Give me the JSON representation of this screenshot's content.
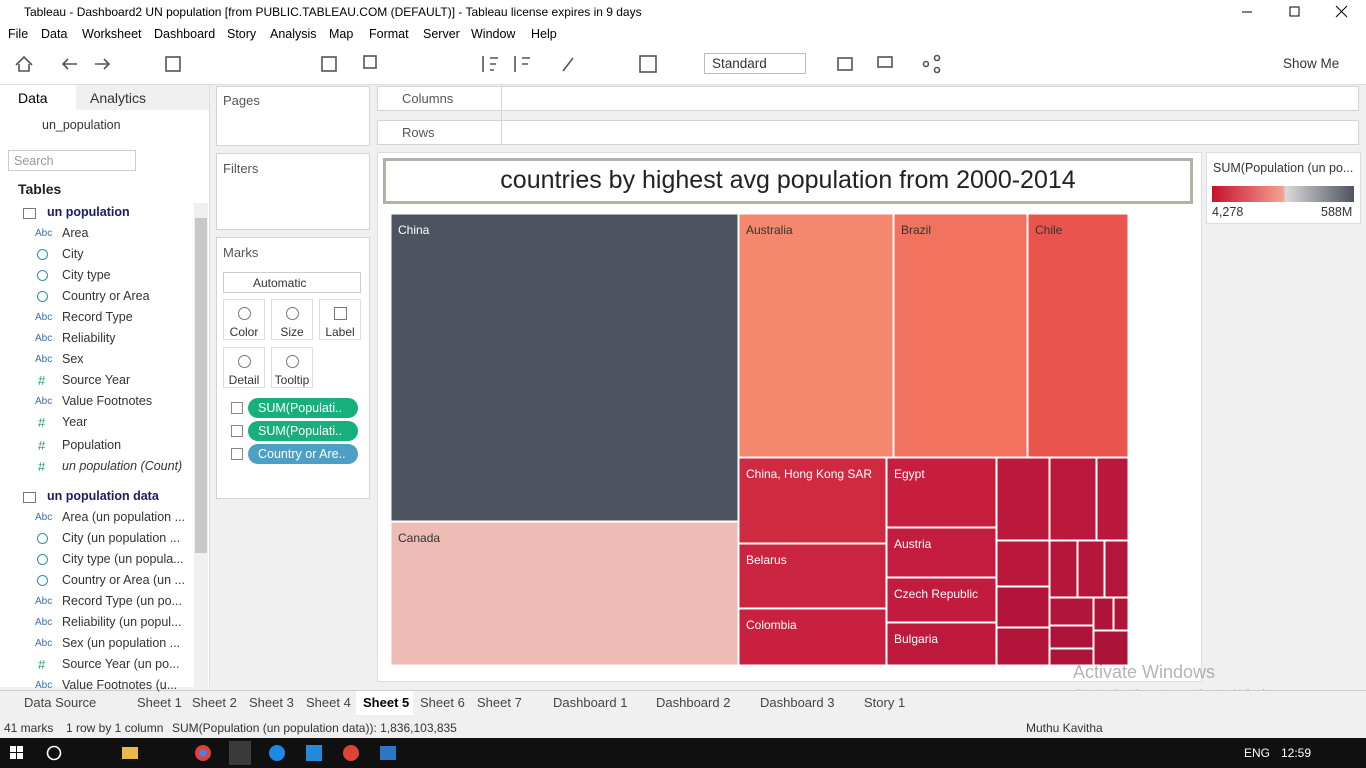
{
  "window": {
    "title": "Tableau - Dashboard2 UN population [from PUBLIC.TABLEAU.COM (DEFAULT)] - Tableau license expires in 9 days"
  },
  "menu": [
    "File",
    "Data",
    "Worksheet",
    "Dashboard",
    "Story",
    "Analysis",
    "Map",
    "Format",
    "Server",
    "Window",
    "Help"
  ],
  "toolbar": {
    "mode": "Standard",
    "show_me": "Show Me"
  },
  "data_pane": {
    "tabs": [
      "Data",
      "Analytics"
    ],
    "datasource": "un_population",
    "search": "Search",
    "tables_heading": "Tables",
    "tables": [
      {
        "name": "un population",
        "fields": [
          {
            "icon": "Abc",
            "name": "Area"
          },
          {
            "name": "City"
          },
          {
            "name": "City type"
          },
          {
            "name": "Country or Area"
          },
          {
            "icon": "Abc",
            "name": "Record Type"
          },
          {
            "icon": "Abc",
            "name": "Reliability"
          },
          {
            "icon": "Abc",
            "name": "Sex"
          },
          {
            "icon": "#",
            "name": "Source Year"
          },
          {
            "icon": "Abc",
            "name": "Value Footnotes"
          },
          {
            "icon": "#",
            "name": "Year"
          },
          {
            "icon": "#",
            "name": "Population"
          },
          {
            "icon": "#",
            "name": "un population (Count)"
          }
        ]
      },
      {
        "name": "un population data",
        "fields": [
          {
            "icon": "Abc",
            "name": "Area (un population ..."
          },
          {
            "name": "City (un population ..."
          },
          {
            "name": "City type (un popula..."
          },
          {
            "name": "Country or Area (un ..."
          },
          {
            "icon": "Abc",
            "name": "Record Type (un po..."
          },
          {
            "icon": "Abc",
            "name": "Reliability (un popul..."
          },
          {
            "icon": "Abc",
            "name": "Sex (un population ..."
          },
          {
            "icon": "#",
            "name": "Source Year (un po..."
          },
          {
            "icon": "Abc",
            "name": "Value Footnotes (u..."
          }
        ]
      }
    ]
  },
  "shelves": {
    "pages": "Pages",
    "columns": "Columns",
    "rows": "Rows",
    "filters": "Filters",
    "marks": "Marks",
    "mark_type": "Automatic",
    "mark_buttons": [
      "Color",
      "Size",
      "Label",
      "Detail",
      "Tooltip"
    ],
    "pills": [
      "SUM(Populati..",
      "SUM(Populati..",
      "Country or Are.."
    ]
  },
  "dashboard": {
    "title": "countries by highest avg population from 2000-2014",
    "treemap_labels": [
      "China",
      "Australia",
      "Brazil",
      "Chile",
      "Canada",
      "China, Hong Kong SAR",
      "Egypt",
      "Belarus",
      "Austria",
      "Czech Republic",
      "Colombia",
      "Bulgaria"
    ],
    "legend": {
      "title": "SUM(Population (un po...",
      "min": "4,278",
      "max": "588M"
    }
  },
  "watermark": [
    "Activate Windows",
    "Go to Settings to activate Windows."
  ],
  "sheet_tabs": [
    "Data Source",
    "Sheet 1",
    "Sheet 2",
    "Sheet 3",
    "Sheet 4",
    "Sheet 5",
    "Sheet 6",
    "Sheet 7",
    "Dashboard 1",
    "Dashboard 2",
    "Dashboard 3",
    "Story 1"
  ],
  "status": {
    "marks": "41 marks",
    "layout": "1 row by 1 column",
    "sum": "SUM(Population (un population data)): 1,836,103,835",
    "user": "Muthu Kavitha"
  },
  "taskbar": {
    "lang": "ENG",
    "time": "12:59"
  }
}
